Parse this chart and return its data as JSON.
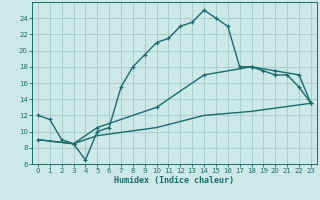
{
  "xlabel": "Humidex (Indice chaleur)",
  "bg_color": "#cce8e8",
  "grid_color": "#aacccc",
  "line_color": "#1a6b6b",
  "xlim": [
    -0.5,
    23.5
  ],
  "ylim": [
    6,
    26
  ],
  "yticks": [
    6,
    8,
    10,
    12,
    14,
    16,
    18,
    20,
    22,
    24
  ],
  "xticks": [
    0,
    1,
    2,
    3,
    4,
    5,
    6,
    7,
    8,
    9,
    10,
    11,
    12,
    13,
    14,
    15,
    16,
    17,
    18,
    19,
    20,
    21,
    22,
    23
  ],
  "line1_x": [
    0,
    1,
    2,
    3,
    4,
    5,
    6,
    7,
    8,
    9,
    10,
    11,
    12,
    13,
    14,
    15,
    16,
    17,
    18,
    19,
    20,
    21,
    22,
    23
  ],
  "line1_y": [
    12,
    11.5,
    9,
    8.5,
    6.5,
    10,
    10.5,
    15.5,
    18,
    19.5,
    21,
    21.5,
    23,
    23.5,
    25,
    24,
    23,
    18,
    18,
    17.5,
    17,
    17,
    15.5,
    13.5
  ],
  "line2_x": [
    0,
    3,
    5,
    10,
    14,
    18,
    20,
    22,
    23
  ],
  "line2_y": [
    9,
    8.5,
    10.5,
    13,
    17,
    18,
    17.5,
    17,
    13.5
  ],
  "line3_x": [
    0,
    3,
    5,
    10,
    14,
    18,
    23
  ],
  "line3_y": [
    9,
    8.5,
    9.5,
    10.5,
    12,
    12.5,
    13.5
  ]
}
